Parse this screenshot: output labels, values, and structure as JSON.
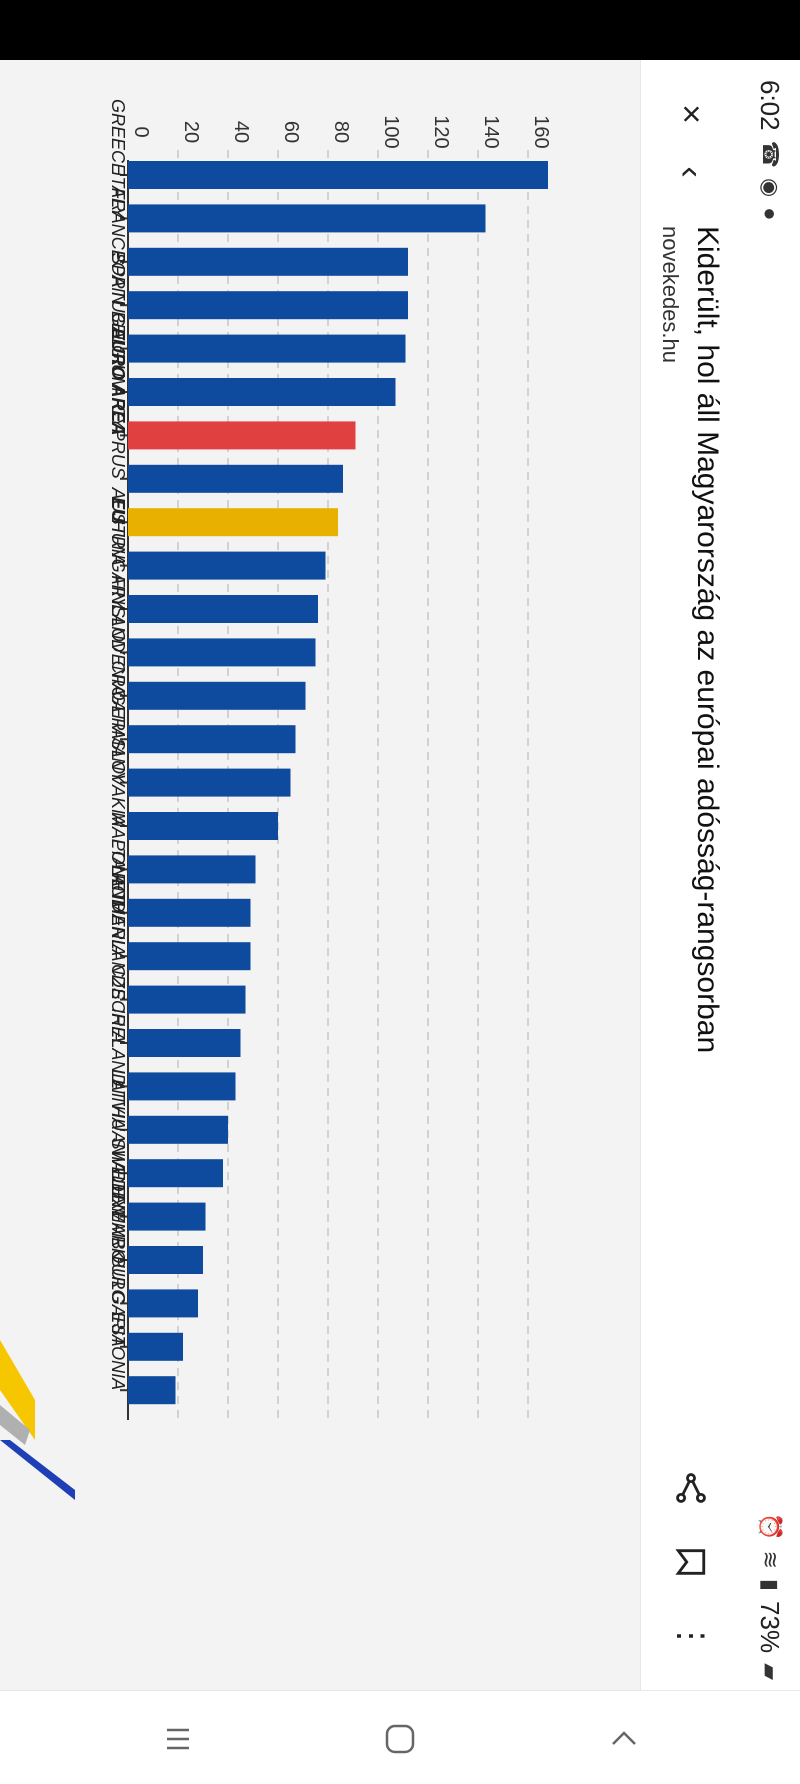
{
  "status_bar": {
    "time": "6:02",
    "battery": "73%",
    "left_icons": [
      "missed-call-icon",
      "messenger-icon",
      "notification-icon"
    ],
    "right_icons": [
      "alarm-icon",
      "wifi-icon",
      "signal-icon",
      "battery-icon"
    ]
  },
  "toolbar": {
    "title": "Kiderült, hol áll Magyarország az európai adósság-rangsorban",
    "url": "novekedes.hu",
    "close_icon": "×",
    "back_icon": "‹",
    "share_icon": "share-icon",
    "bookmark_icon": "bookmark-icon",
    "more_icon": "⋮"
  },
  "chart_data": {
    "type": "bar",
    "orientation": "horizontal (page rotated 90°)",
    "categories": [
      "GREECE",
      "ITALY",
      "FRANCE",
      "SPAIN",
      "PORTUGAL",
      "BELGIUM",
      "EURO AREA",
      "CYPRUS",
      "EU",
      "AUSTRIA",
      "HUNGARY",
      "FINLAND",
      "SLOVENIA",
      "CROATIA",
      "GERMANY",
      "SLOVAKIA",
      "MALTA",
      "POLAND",
      "ROMANIA",
      "NETHERLANDS",
      "CZECHIA",
      "IRELAND",
      "LATVIA",
      "LITHUANIA",
      "SWEDEN",
      "DENMARK",
      "LUXEMBOURG",
      "BULGARIA",
      "ESTONIA"
    ],
    "values": [
      168,
      143,
      112,
      112,
      111,
      107,
      91,
      86,
      84,
      79,
      76,
      75,
      71,
      67,
      65,
      60,
      51,
      49,
      49,
      47,
      45,
      43,
      40,
      38,
      31,
      30,
      28,
      22,
      19
    ],
    "highlight": {
      "EURO AREA": "#e04040",
      "EU": "#e8b000"
    },
    "bar_color": "#0e4a9e",
    "ticks": [
      "0",
      "20",
      "40",
      "60",
      "80",
      "100",
      "120",
      "140",
      "160"
    ],
    "xlim": [
      0,
      170
    ],
    "grid": true
  },
  "nav": {
    "recent_icon": "recent-apps-icon",
    "home_icon": "home-icon",
    "back_icon": "back-nav-icon"
  }
}
